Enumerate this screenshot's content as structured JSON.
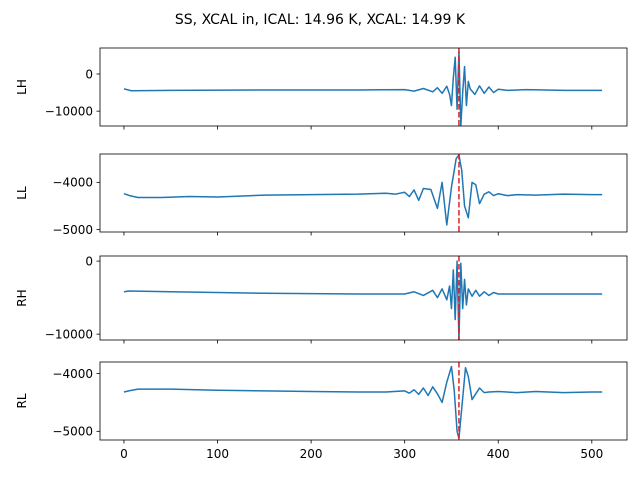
{
  "title": "SS, XCAL in, ICAL: 14.96 K, XCAL: 14.99 K",
  "colors": {
    "line": "#1f77b4",
    "marker": "#d62728",
    "axis": "#000000"
  },
  "xlim": [
    -25.6,
    537.6
  ],
  "x_ticks": [
    0,
    100,
    200,
    300,
    400,
    500
  ],
  "x_tick_labels": [
    "0",
    "100",
    "200",
    "300",
    "400",
    "500"
  ],
  "marker_x": 358,
  "chart_data": [
    {
      "type": "line",
      "ylabel": "LH",
      "ylim": [
        -14000,
        7000
      ],
      "y_ticks": [
        0,
        -10000
      ],
      "y_tick_labels": [
        "0",
        "−10000"
      ],
      "series": {
        "x": [
          0,
          8,
          50,
          150,
          250,
          300,
          310,
          320,
          330,
          335,
          340,
          345,
          348,
          350,
          352,
          354,
          356,
          358,
          360,
          362,
          364,
          366,
          368,
          370,
          375,
          380,
          385,
          390,
          395,
          400,
          410,
          430,
          470,
          511
        ],
        "values": [
          -4000,
          -4500,
          -4400,
          -4300,
          -4300,
          -4200,
          -4600,
          -3900,
          -4800,
          -3700,
          -5200,
          -3300,
          -5500,
          -8500,
          -1000,
          4500,
          -9500,
          6000,
          -14000,
          -5000,
          2000,
          -8500,
          -2000,
          -4000,
          -5500,
          -3200,
          -5200,
          -3500,
          -5000,
          -4100,
          -4400,
          -4200,
          -4400,
          -4400
        ]
      }
    },
    {
      "type": "line",
      "ylabel": "LL",
      "ylim": [
        -5050,
        -3400
      ],
      "y_ticks": [
        -4000,
        -5000
      ],
      "y_tick_labels": [
        "−4000",
        "−5000"
      ],
      "series": {
        "x": [
          0,
          6,
          15,
          40,
          70,
          100,
          150,
          200,
          250,
          280,
          290,
          300,
          305,
          310,
          315,
          320,
          328,
          335,
          340,
          345,
          350,
          355,
          358,
          361,
          364,
          368,
          372,
          376,
          380,
          385,
          390,
          395,
          400,
          410,
          420,
          440,
          470,
          500,
          511
        ],
        "values": [
          -4240,
          -4280,
          -4320,
          -4320,
          -4300,
          -4310,
          -4270,
          -4260,
          -4250,
          -4230,
          -4250,
          -4210,
          -4300,
          -4160,
          -4380,
          -4130,
          -4150,
          -4550,
          -4000,
          -4900,
          -4100,
          -3500,
          -3420,
          -3750,
          -4500,
          -4750,
          -4000,
          -4050,
          -4450,
          -4250,
          -4200,
          -4280,
          -4240,
          -4280,
          -4260,
          -4270,
          -4250,
          -4260,
          -4260
        ]
      }
    },
    {
      "type": "line",
      "ylabel": "RH",
      "ylim": [
        -10800,
        700
      ],
      "y_ticks": [
        0,
        -10000
      ],
      "y_tick_labels": [
        "0",
        "−10000"
      ],
      "series": {
        "x": [
          0,
          5,
          50,
          150,
          250,
          300,
          310,
          320,
          330,
          335,
          340,
          345,
          348,
          350,
          352,
          354,
          356,
          358,
          360,
          362,
          364,
          366,
          368,
          372,
          376,
          380,
          385,
          390,
          395,
          400,
          430,
          470,
          511
        ],
        "values": [
          -4200,
          -4100,
          -4200,
          -4400,
          -4500,
          -4500,
          -4200,
          -4700,
          -4000,
          -5000,
          -3800,
          -5300,
          -3400,
          -6500,
          -1200,
          -8000,
          0,
          -10800,
          -300,
          -6500,
          -2500,
          -6000,
          -3800,
          -4800,
          -4000,
          -4800,
          -4200,
          -4700,
          -4300,
          -4500,
          -4500,
          -4500,
          -4500
        ]
      }
    },
    {
      "type": "line",
      "ylabel": "RL",
      "ylim": [
        -5150,
        -3800
      ],
      "y_ticks": [
        -4000,
        -5000
      ],
      "y_tick_labels": [
        "−4000",
        "−5000"
      ],
      "series": {
        "x": [
          0,
          5,
          15,
          50,
          100,
          150,
          200,
          250,
          280,
          300,
          305,
          310,
          315,
          320,
          325,
          330,
          335,
          340,
          345,
          350,
          353,
          356,
          358,
          361,
          365,
          368,
          372,
          376,
          380,
          385,
          390,
          400,
          420,
          440,
          470,
          500,
          511
        ],
        "values": [
          -4320,
          -4300,
          -4270,
          -4270,
          -4290,
          -4300,
          -4310,
          -4320,
          -4320,
          -4300,
          -4340,
          -4280,
          -4360,
          -4250,
          -4380,
          -4230,
          -4350,
          -4500,
          -4150,
          -3880,
          -4300,
          -5000,
          -5120,
          -4600,
          -3900,
          -4050,
          -4450,
          -4350,
          -4250,
          -4330,
          -4320,
          -4310,
          -4330,
          -4310,
          -4330,
          -4320,
          -4320
        ]
      }
    }
  ]
}
